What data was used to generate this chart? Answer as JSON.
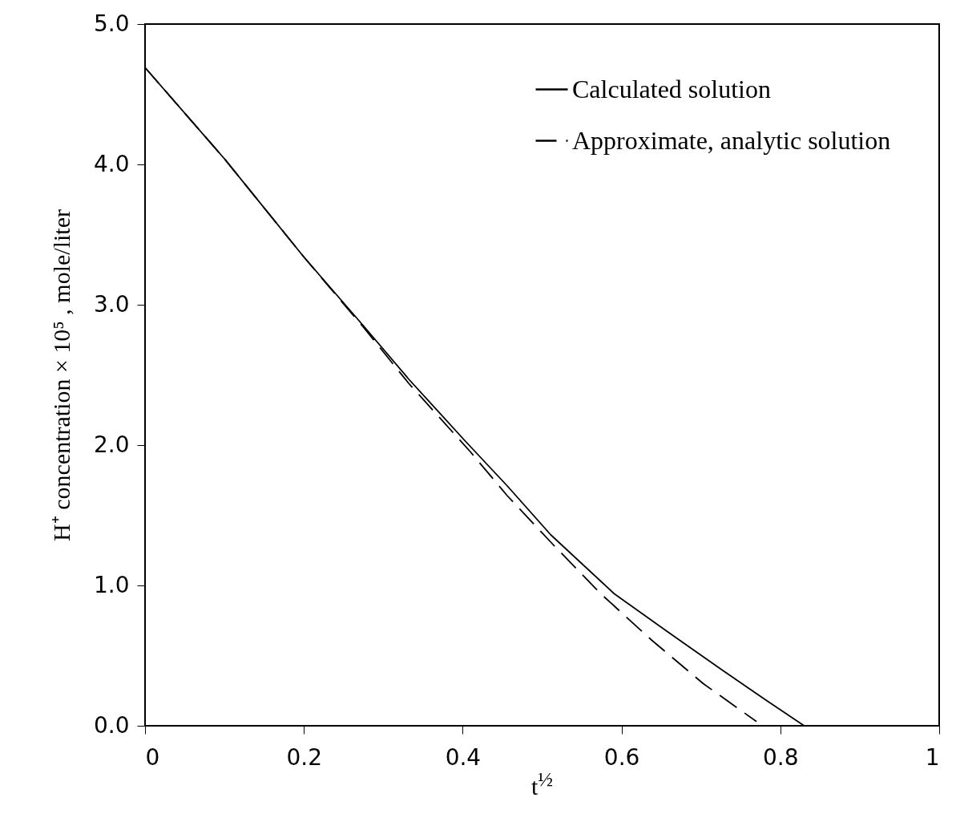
{
  "chart_data": {
    "type": "line",
    "xlabel": "t$^{½}$",
    "ylabel": "H⁺ concentration × 10⁵ , mole/liter",
    "xlim": [
      0,
      1
    ],
    "ylim": [
      0,
      5
    ],
    "xticks": [
      0,
      0.2,
      0.4,
      0.6,
      0.8,
      1
    ],
    "yticks": [
      {
        "value": 0,
        "label": "0.0"
      },
      {
        "value": 1,
        "label": "1.0"
      },
      {
        "value": 2,
        "label": "2.0"
      },
      {
        "value": 3,
        "label": "3.0"
      },
      {
        "value": 4,
        "label": "4.0"
      },
      {
        "value": 5,
        "label": "5.0"
      }
    ],
    "grid": false,
    "legend": "top right",
    "series": [
      {
        "name": "Calculated solution",
        "color": "#000000",
        "line_style": "solid",
        "x": [
          0,
          0.1,
          0.2,
          0.275,
          0.332,
          0.403,
          0.456,
          0.511,
          0.591,
          0.658,
          0.726,
          0.78,
          0.83
        ],
        "values": [
          4.69,
          4.04,
          3.34,
          2.85,
          2.47,
          2.03,
          1.71,
          1.36,
          0.94,
          0.67,
          0.4,
          0.19,
          0
        ]
      },
      {
        "name": "Approximate, analytic solution",
        "color": "#000000",
        "line_style": "dashed",
        "x": [
          0,
          0.1,
          0.2,
          0.275,
          0.332,
          0.41,
          0.456,
          0.514,
          0.574,
          0.638,
          0.703,
          0.77
        ],
        "values": [
          4.69,
          4.04,
          3.34,
          2.84,
          2.44,
          1.95,
          1.64,
          1.29,
          0.94,
          0.61,
          0.3,
          0.03
        ]
      }
    ]
  }
}
